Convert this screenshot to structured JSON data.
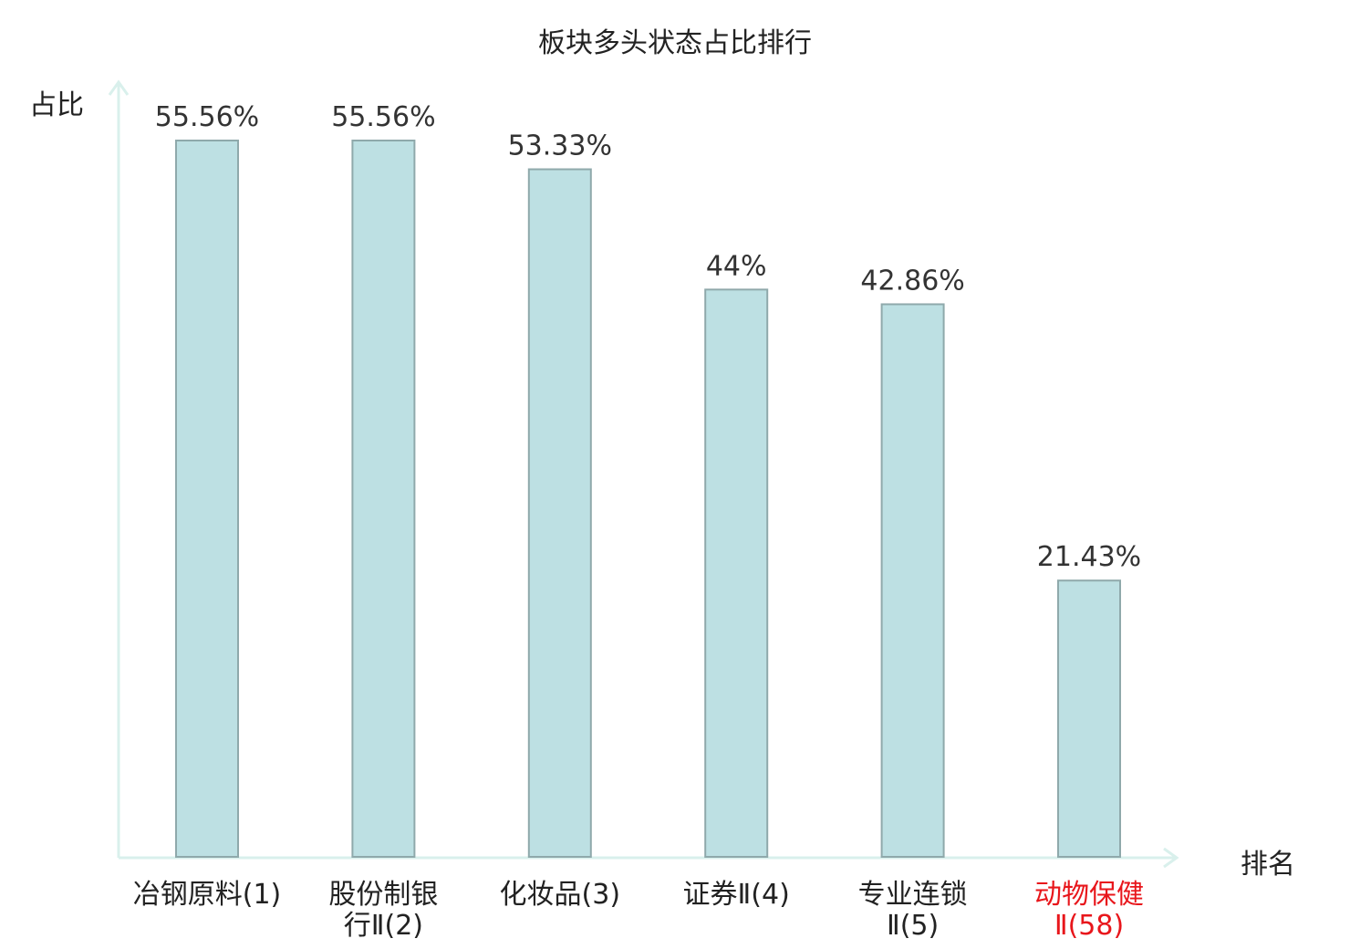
{
  "chart_data": {
    "type": "bar",
    "title": "板块多头状态占比排行",
    "ylabel": "占比",
    "xlabel": "排名",
    "categories": [
      {
        "lines": [
          "冶钢原料(1)"
        ]
      },
      {
        "lines": [
          "股份制银",
          "行Ⅱ(2)"
        ]
      },
      {
        "lines": [
          "化妆品(3)"
        ]
      },
      {
        "lines": [
          "证券Ⅱ(4)"
        ]
      },
      {
        "lines": [
          "专业连锁",
          "Ⅱ(5)"
        ]
      },
      {
        "lines": [
          "动物保健",
          "Ⅱ(58)"
        ],
        "highlight": true
      }
    ],
    "values": [
      55.56,
      55.56,
      53.33,
      44,
      42.86,
      21.43
    ],
    "value_labels": [
      "55.56%",
      "55.56%",
      "53.33%",
      "44%",
      "42.86%",
      "21.43%"
    ],
    "ylim": [
      0,
      60
    ],
    "grid": false,
    "colors": {
      "bar_fill": "#bde0e3",
      "bar_stroke": "#8fa9ab",
      "axis": "#d9f0ec",
      "highlight": "#e8161b"
    }
  }
}
